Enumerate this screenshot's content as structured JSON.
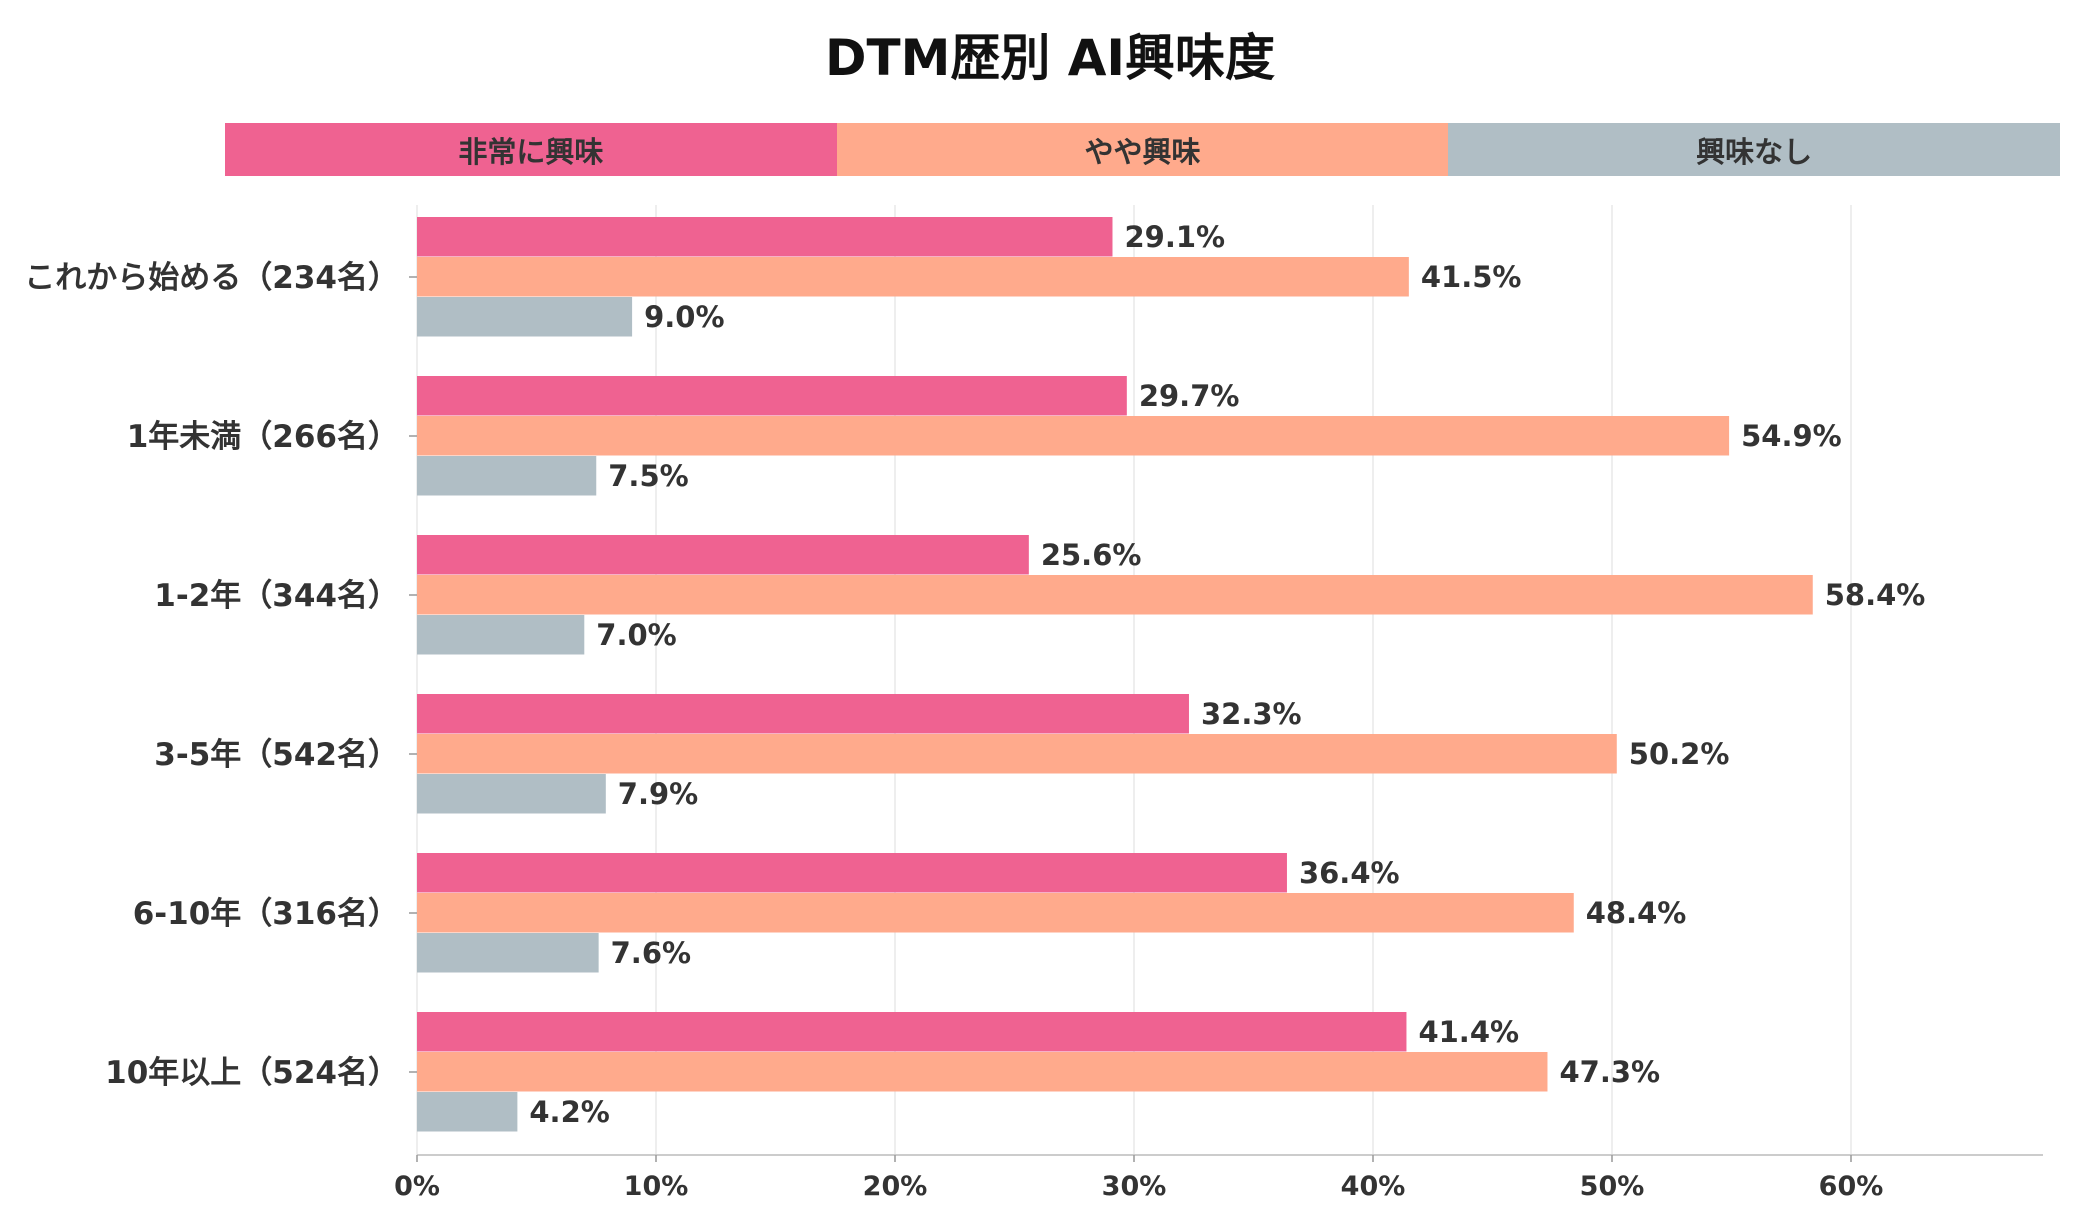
{
  "chart_data": {
    "type": "bar",
    "orientation": "horizontal",
    "title": "DTM歴別 AI興味度",
    "xlabel": "",
    "ylabel": "",
    "xlim": [
      0,
      68
    ],
    "x_ticks": [
      "0%",
      "10%",
      "20%",
      "30%",
      "40%",
      "50%",
      "60%"
    ],
    "grid": true,
    "legend_position": "top",
    "categories": [
      "これから始める（234名）",
      "1年未満（266名）",
      "1-2年（344名）",
      "3-5年（542名）",
      "6-10年（316名）",
      "10年以上（524名）"
    ],
    "series": [
      {
        "name": "非常に興味",
        "color": "#EF6291",
        "values": [
          29.1,
          29.7,
          25.6,
          32.3,
          36.4,
          41.4
        ]
      },
      {
        "name": "やや興味",
        "color": "#FFAA8C",
        "values": [
          41.5,
          54.9,
          58.4,
          50.2,
          48.4,
          47.3
        ]
      },
      {
        "name": "興味なし",
        "color": "#B0BEC5",
        "values": [
          9.0,
          7.5,
          7.0,
          7.9,
          7.6,
          4.2
        ]
      }
    ]
  }
}
